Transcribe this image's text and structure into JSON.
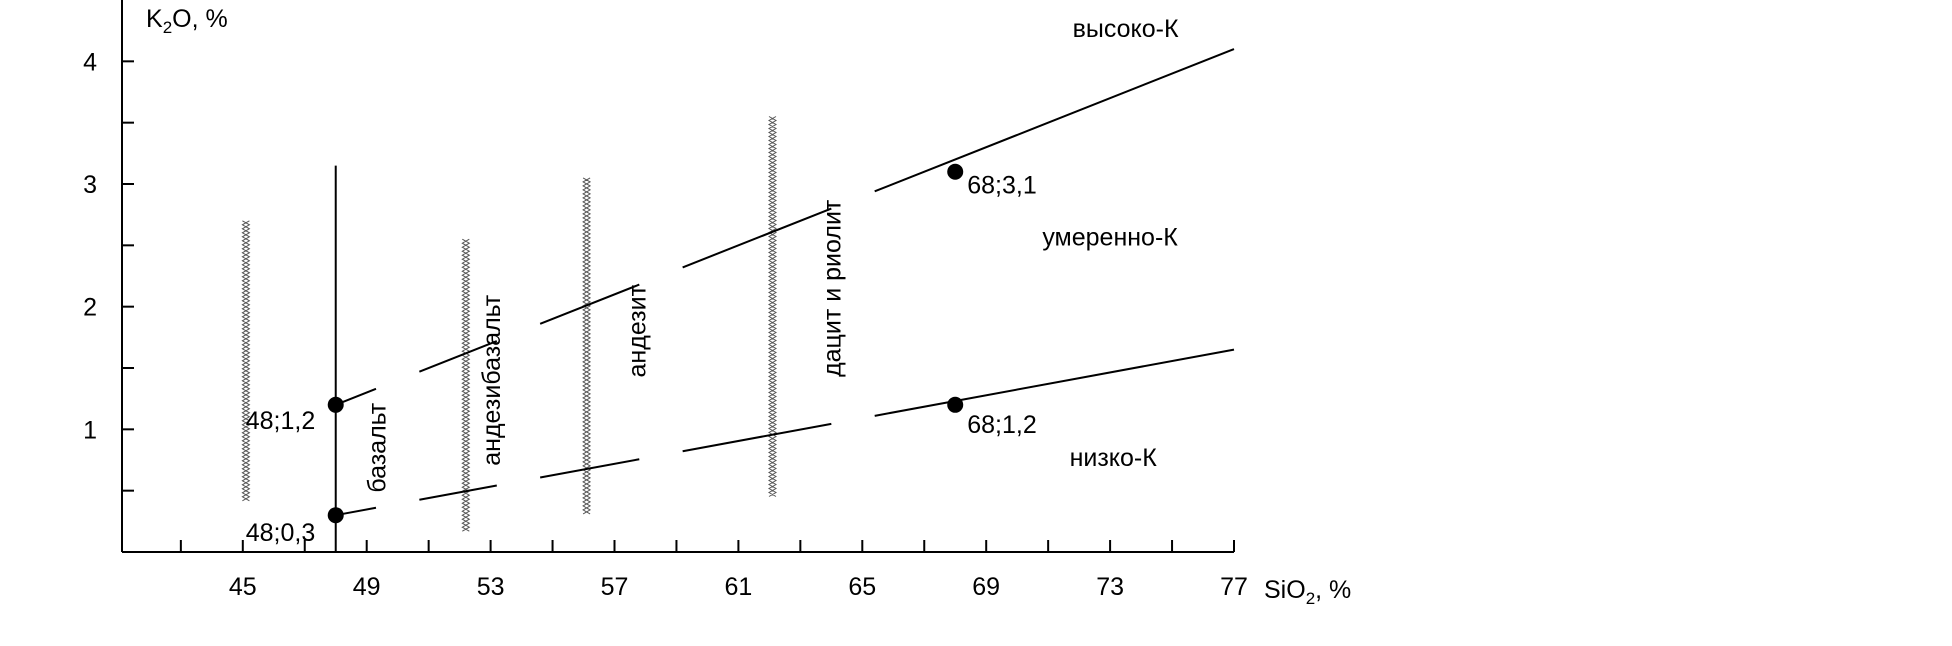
{
  "chart_data": {
    "type": "scatter",
    "title": "",
    "ylabel": "K",
    "ylabel_sub": "2",
    "ylabel_tail": "O, %",
    "xlabel": "SiO",
    "xlabel_sub": "2",
    "xlabel_tail": ", %",
    "xlim": [
      41.1,
      77.0
    ],
    "ylim": [
      0.0,
      4.5
    ],
    "x_tick_labels": [
      "45",
      "49",
      "53",
      "57",
      "61",
      "65",
      "69",
      "73",
      "77"
    ],
    "x_tick_values": [
      45,
      49,
      53,
      57,
      61,
      65,
      69,
      73,
      77
    ],
    "x_minor_ticks": [
      43,
      47,
      51,
      55,
      59,
      63,
      67,
      71,
      75
    ],
    "y_tick_labels": [
      "1",
      "2",
      "3",
      "4"
    ],
    "y_tick_values": [
      1,
      2,
      3,
      4
    ],
    "y_minor_ticks": [
      0.5,
      1.5,
      2.5,
      3.5
    ],
    "grid": false,
    "points": [
      {
        "x": 48,
        "y": 1.2,
        "label": "48;1,2"
      },
      {
        "x": 48,
        "y": 0.3,
        "label": "48;0,3"
      },
      {
        "x": 68,
        "y": 3.1,
        "label": "68;3,1"
      },
      {
        "x": 68,
        "y": 1.2,
        "label": "68;1,2"
      }
    ],
    "boundary_lines": [
      {
        "name": "upper",
        "x": [
          48,
          77
        ],
        "y": [
          1.2,
          4.1
        ]
      },
      {
        "name": "lower",
        "x": [
          48,
          77
        ],
        "y": [
          0.3,
          1.65
        ]
      }
    ],
    "vertical_line": {
      "x": 48,
      "y": [
        0,
        3.15
      ]
    },
    "hatched_bands": [
      {
        "x": 45.1,
        "y": [
          0.4,
          2.7
        ]
      },
      {
        "x": 52.2,
        "y": [
          0.15,
          2.55
        ]
      },
      {
        "x": 56.1,
        "y": [
          0.3,
          3.05
        ]
      },
      {
        "x": 62.1,
        "y": [
          0.45,
          3.55
        ]
      }
    ],
    "region_labels": [
      {
        "text": "высоко-К",
        "x": 73.5,
        "y": 4.2
      },
      {
        "text": "умеренно-К",
        "x": 73.0,
        "y": 2.5
      },
      {
        "text": "низко-К",
        "x": 73.1,
        "y": 0.7
      }
    ],
    "rock_labels": [
      {
        "text": "базальт",
        "x": 49.6,
        "y": 0.85
      },
      {
        "text": "андезибазальт",
        "x": 53.3,
        "y": 1.4
      },
      {
        "text": "андезит",
        "x": 58.0,
        "y": 1.8
      },
      {
        "text": "дацит и риолит",
        "x": 64.3,
        "y": 2.15
      }
    ]
  }
}
